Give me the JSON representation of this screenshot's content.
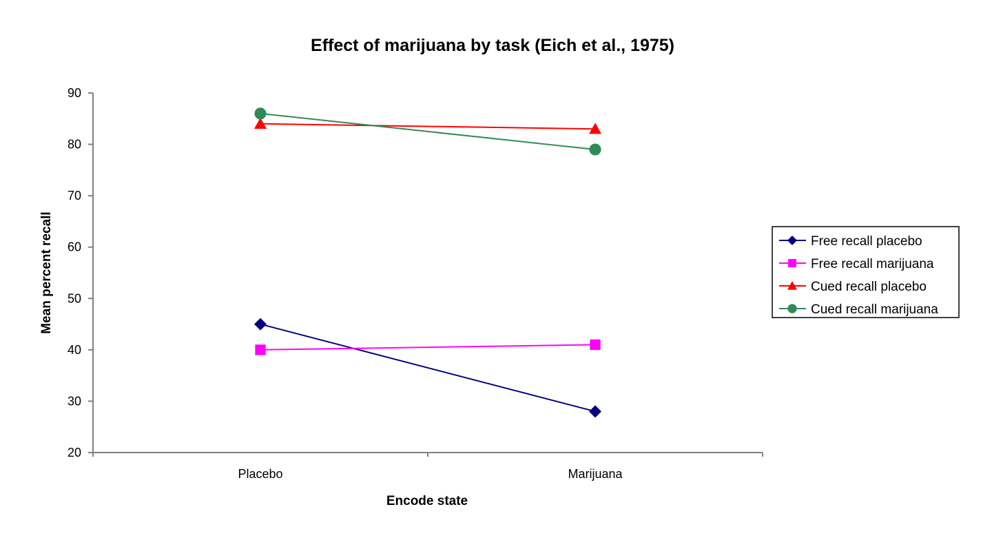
{
  "chart_data": {
    "type": "line",
    "title": "Effect of marijuana by task (Eich et al., 1975)",
    "xlabel": "Encode state",
    "ylabel": "Mean percent recall",
    "categories": [
      "Placebo",
      "Marijuana"
    ],
    "ylim": [
      20,
      90
    ],
    "yticks": [
      20,
      30,
      40,
      50,
      60,
      70,
      80,
      90
    ],
    "grid": false,
    "legend_position": "right",
    "series": [
      {
        "name": "Free recall placebo",
        "values": [
          45,
          28
        ],
        "color": "#000080",
        "marker": "diamond"
      },
      {
        "name": "Free recall marijuana",
        "values": [
          40,
          41
        ],
        "color": "#ff00ff",
        "marker": "square"
      },
      {
        "name": "Cued recall placebo",
        "values": [
          84,
          83
        ],
        "color": "#ff0000",
        "marker": "triangle"
      },
      {
        "name": "Cued recall marijuana",
        "values": [
          86,
          79
        ],
        "color": "#2e8b57",
        "marker": "circle"
      }
    ]
  }
}
